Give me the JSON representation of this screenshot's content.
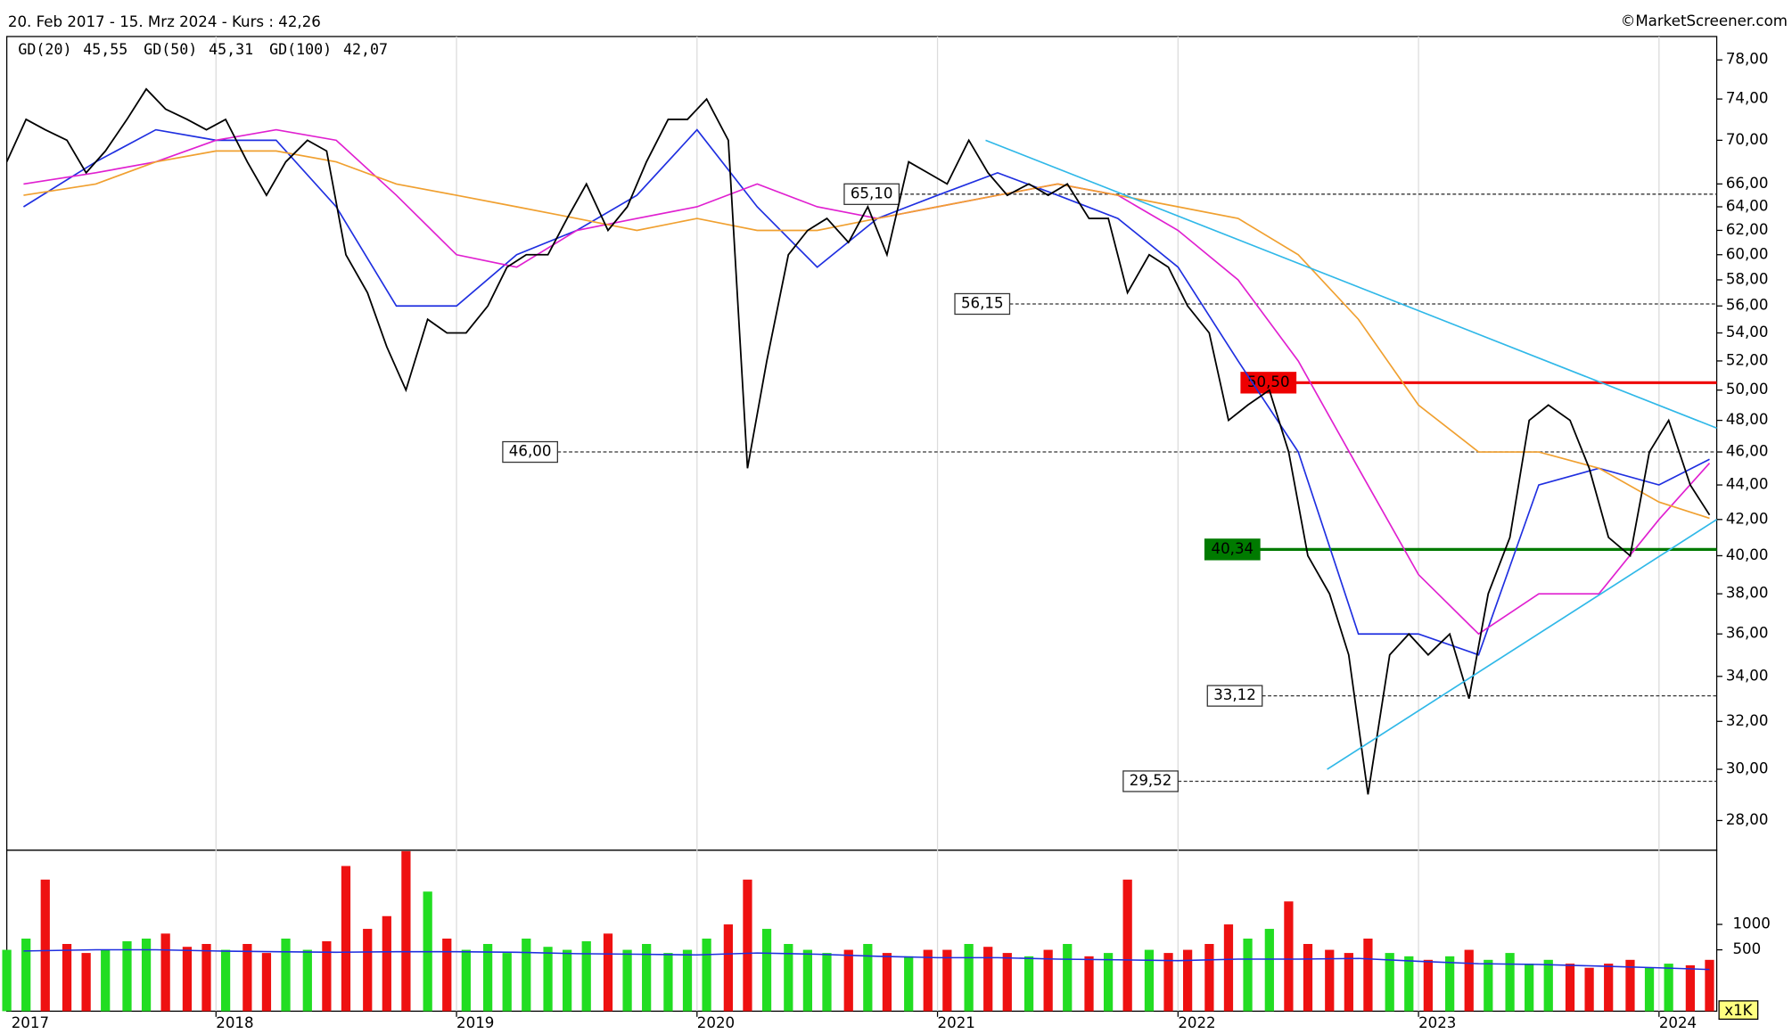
{
  "chart_data": {
    "type": "line",
    "title": "20. Feb 2017 - 15. Mrz 2024 - Kurs : 42,26",
    "source": "©MarketScreener.com",
    "color": "#000000",
    "log_scale": true,
    "xgrid": true,
    "xlim": [
      2017.13,
      2024.24
    ],
    "xticks": [
      2017,
      2018,
      2019,
      2020,
      2021,
      2022,
      2023,
      2024
    ],
    "ylim": [
      26.9,
      80.5
    ],
    "yticks": [
      {
        "value": 78,
        "label": "78,00"
      },
      {
        "value": 74,
        "label": "74,00"
      },
      {
        "value": 70,
        "label": "70,00"
      },
      {
        "value": 66,
        "label": "66,00"
      },
      {
        "value": 64,
        "label": "64,00"
      },
      {
        "value": 62,
        "label": "62,00"
      },
      {
        "value": 60,
        "label": "60,00"
      },
      {
        "value": 58,
        "label": "58,00"
      },
      {
        "value": 56,
        "label": "56,00"
      },
      {
        "value": 54,
        "label": "54,00"
      },
      {
        "value": 52,
        "label": "52,00"
      },
      {
        "value": 50,
        "label": "50,00"
      },
      {
        "value": 48,
        "label": "48,00"
      },
      {
        "value": 46,
        "label": "46,00"
      },
      {
        "value": 44,
        "label": "44,00"
      },
      {
        "value": 42,
        "label": "42,00"
      },
      {
        "value": 40,
        "label": "40,00"
      },
      {
        "value": 38,
        "label": "38,00"
      },
      {
        "value": 36,
        "label": "36,00"
      },
      {
        "value": 34,
        "label": "34,00"
      },
      {
        "value": 32,
        "label": "32,00"
      },
      {
        "value": 30,
        "label": "30,00"
      },
      {
        "value": 28,
        "label": "28,00"
      }
    ],
    "x": [
      2017.13,
      2017.21,
      2017.29,
      2017.38,
      2017.46,
      2017.54,
      2017.63,
      2017.71,
      2017.79,
      2017.88,
      2017.96,
      2018.04,
      2018.13,
      2018.21,
      2018.29,
      2018.38,
      2018.46,
      2018.54,
      2018.63,
      2018.71,
      2018.79,
      2018.88,
      2018.96,
      2019.04,
      2019.13,
      2019.21,
      2019.29,
      2019.38,
      2019.46,
      2019.54,
      2019.63,
      2019.71,
      2019.79,
      2019.88,
      2019.96,
      2020.04,
      2020.13,
      2020.21,
      2020.29,
      2020.38,
      2020.46,
      2020.54,
      2020.63,
      2020.71,
      2020.79,
      2020.88,
      2020.96,
      2021.04,
      2021.13,
      2021.21,
      2021.29,
      2021.38,
      2021.46,
      2021.54,
      2021.63,
      2021.71,
      2021.79,
      2021.88,
      2021.96,
      2022.04,
      2022.13,
      2022.21,
      2022.29,
      2022.38,
      2022.46,
      2022.54,
      2022.63,
      2022.71,
      2022.79,
      2022.88,
      2022.96,
      2023.04,
      2023.13,
      2023.21,
      2023.29,
      2023.38,
      2023.46,
      2023.54,
      2023.63,
      2023.71,
      2023.79,
      2023.88,
      2023.96,
      2024.04,
      2024.13,
      2024.21
    ],
    "values": [
      68,
      72,
      71,
      70,
      67,
      69,
      72,
      75,
      73,
      72,
      71,
      72,
      68,
      65,
      68,
      70,
      69,
      60,
      57,
      53,
      50,
      55,
      54,
      54,
      56,
      59,
      60,
      60,
      63,
      66,
      62,
      64,
      68,
      72,
      72,
      74,
      70,
      45,
      52,
      60,
      62,
      63,
      61,
      64,
      60,
      68,
      67,
      66,
      70,
      67,
      65,
      66,
      65,
      66,
      63,
      63,
      57,
      60,
      59,
      56,
      54,
      48,
      49,
      50,
      46,
      40,
      38,
      35,
      29,
      35,
      36,
      35,
      36,
      33,
      38,
      41,
      48,
      49,
      48,
      45,
      41,
      40,
      46,
      48,
      44,
      42.26
    ],
    "averages": [
      {
        "name": "GD(20)",
        "last_label": "45,55",
        "color": "#1f2fe0",
        "x": [
          2017.2,
          2017.5,
          2017.75,
          2018.0,
          2018.25,
          2018.5,
          2018.75,
          2019.0,
          2019.25,
          2019.5,
          2019.75,
          2020.0,
          2020.25,
          2020.5,
          2020.75,
          2021.0,
          2021.25,
          2021.5,
          2021.75,
          2022.0,
          2022.25,
          2022.5,
          2022.75,
          2023.0,
          2023.25,
          2023.5,
          2023.75,
          2024.0,
          2024.21
        ],
        "values": [
          64,
          68,
          71,
          70,
          70,
          64,
          56,
          56,
          60,
          62,
          65,
          71,
          64,
          59,
          63,
          65,
          67,
          65,
          63,
          59,
          52,
          46,
          36,
          36,
          35,
          44,
          45,
          44,
          45.55
        ]
      },
      {
        "name": "GD(50)",
        "last_label": "45,31",
        "color": "#e020d0",
        "x": [
          2017.2,
          2017.5,
          2017.75,
          2018.0,
          2018.25,
          2018.5,
          2018.75,
          2019.0,
          2019.25,
          2019.5,
          2019.75,
          2020.0,
          2020.25,
          2020.5,
          2020.75,
          2021.0,
          2021.25,
          2021.5,
          2021.75,
          2022.0,
          2022.25,
          2022.5,
          2022.75,
          2023.0,
          2023.25,
          2023.5,
          2023.75,
          2024.0,
          2024.21
        ],
        "values": [
          66,
          67,
          68,
          70,
          71,
          70,
          65,
          60,
          59,
          62,
          63,
          64,
          66,
          64,
          63,
          64,
          65,
          66,
          65,
          62,
          58,
          52,
          45,
          39,
          36,
          38,
          38,
          42,
          45.31
        ]
      },
      {
        "name": "GD(100)",
        "last_label": "42,07",
        "color": "#f0a030",
        "x": [
          2017.2,
          2017.5,
          2017.75,
          2018.0,
          2018.25,
          2018.5,
          2018.75,
          2019.0,
          2019.25,
          2019.5,
          2019.75,
          2020.0,
          2020.25,
          2020.5,
          2020.75,
          2021.0,
          2021.25,
          2021.5,
          2021.75,
          2022.0,
          2022.25,
          2022.5,
          2022.75,
          2023.0,
          2023.25,
          2023.5,
          2023.75,
          2024.0,
          2024.21
        ],
        "values": [
          65,
          66,
          68,
          69,
          69,
          68,
          66,
          65,
          64,
          63,
          62,
          63,
          62,
          62,
          63,
          64,
          65,
          66,
          65,
          64,
          63,
          60,
          55,
          49,
          46,
          46,
          45,
          43,
          42.07
        ]
      }
    ],
    "levels": [
      {
        "value": 65.1,
        "label": "65,10",
        "from": 2020.84,
        "color": "#333333",
        "dashed": true,
        "filled": false
      },
      {
        "value": 56.15,
        "label": "56,15",
        "from": 2021.3,
        "color": "#333333",
        "dashed": true,
        "filled": false
      },
      {
        "value": 50.5,
        "label": "50,50",
        "from": 2022.49,
        "color": "#ee0000",
        "dashed": false,
        "filled": true
      },
      {
        "value": 46,
        "label": "46,00",
        "from": 2019.42,
        "color": "#333333",
        "dashed": true,
        "filled": false
      },
      {
        "value": 40.34,
        "label": "40,34",
        "from": 2022.34,
        "color": "#007a00",
        "dashed": false,
        "filled": true
      },
      {
        "value": 33.12,
        "label": "33,12",
        "from": 2022.35,
        "color": "#333333",
        "dashed": true,
        "filled": false
      },
      {
        "value": 29.52,
        "label": "29,52",
        "from": 2022.0,
        "color": "#333333",
        "dashed": true,
        "filled": false
      }
    ],
    "trendlines": {
      "color": "#30b8e8",
      "lines": [
        {
          "x": [
            2021.2,
            2024.24
          ],
          "values": [
            70,
            47.5
          ]
        },
        {
          "x": [
            2022.62,
            2024.24
          ],
          "values": [
            30,
            42
          ]
        }
      ]
    },
    "volume": {
      "type": "bar",
      "scale": "sqrt",
      "unit_label": "x1K",
      "ylim": [
        0,
        3440
      ],
      "yticks": [
        1000,
        500
      ],
      "up_color": "#22dd22",
      "down_color": "#ee1111",
      "values": [
        500,
        700,
        2300,
        600,
        450,
        500,
        650,
        700,
        800,
        550,
        600,
        500,
        600,
        450,
        700,
        500,
        650,
        2800,
        900,
        1200,
        3400,
        1900,
        700,
        500,
        600,
        450,
        700,
        550,
        500,
        650,
        800,
        500,
        600,
        450,
        500,
        700,
        1000,
        2300,
        900,
        600,
        500,
        450,
        500,
        600,
        450,
        400,
        500,
        500,
        600,
        550,
        450,
        400,
        500,
        600,
        400,
        450,
        2300,
        500,
        450,
        500,
        600,
        1000,
        700,
        900,
        1600,
        600,
        500,
        450,
        700,
        450,
        400,
        350,
        400,
        500,
        350,
        450,
        300,
        350,
        300,
        250,
        300,
        350,
        250,
        300,
        280,
        350
      ],
      "average": {
        "color": "#1f2fe0",
        "x": [
          2017.2,
          2017.5,
          2017.75,
          2018.0,
          2018.25,
          2018.5,
          2018.75,
          2019.0,
          2019.25,
          2019.5,
          2019.75,
          2020.0,
          2020.25,
          2020.5,
          2020.75,
          2021.0,
          2021.25,
          2021.5,
          2021.75,
          2022.0,
          2022.25,
          2022.5,
          2022.75,
          2023.0,
          2023.25,
          2023.5,
          2023.75,
          2024.0,
          2024.21
        ],
        "values": [
          480,
          500,
          500,
          480,
          470,
          460,
          470,
          470,
          460,
          440,
          430,
          420,
          450,
          430,
          400,
          380,
          380,
          360,
          350,
          340,
          360,
          360,
          370,
          330,
          300,
          290,
          270,
          250,
          230
        ]
      }
    }
  }
}
